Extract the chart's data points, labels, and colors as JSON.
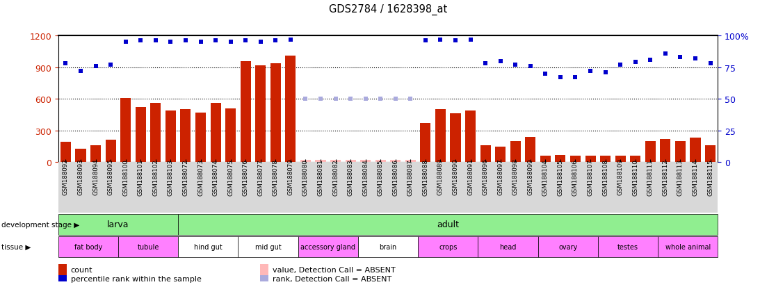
{
  "title": "GDS2784 / 1628398_at",
  "sample_ids": [
    "GSM188092",
    "GSM188093",
    "GSM188094",
    "GSM188095",
    "GSM188100",
    "GSM188101",
    "GSM188102",
    "GSM188103",
    "GSM188072",
    "GSM188073",
    "GSM188074",
    "GSM188075",
    "GSM188076",
    "GSM188077",
    "GSM188078",
    "GSM188079",
    "GSM188080",
    "GSM188081",
    "GSM188082",
    "GSM188083",
    "GSM188084",
    "GSM188085",
    "GSM188086",
    "GSM188087",
    "GSM188088",
    "GSM188089",
    "GSM188090",
    "GSM188091",
    "GSM188096",
    "GSM188097",
    "GSM188098",
    "GSM188099",
    "GSM188104",
    "GSM188105",
    "GSM188106",
    "GSM188107",
    "GSM188108",
    "GSM188109",
    "GSM188110",
    "GSM188111",
    "GSM188112",
    "GSM188113",
    "GSM188114",
    "GSM188115"
  ],
  "bar_values": [
    190,
    130,
    160,
    210,
    610,
    520,
    560,
    490,
    500,
    470,
    560,
    510,
    960,
    920,
    940,
    1010,
    20,
    20,
    20,
    20,
    20,
    20,
    20,
    20,
    370,
    500,
    460,
    490,
    160,
    150,
    200,
    240,
    60,
    70,
    60,
    60,
    60,
    60,
    60,
    200,
    220,
    200,
    230,
    160
  ],
  "absent_bar": [
    false,
    false,
    false,
    false,
    false,
    false,
    false,
    false,
    false,
    false,
    false,
    false,
    false,
    false,
    false,
    false,
    true,
    true,
    true,
    true,
    true,
    true,
    true,
    true,
    false,
    false,
    false,
    false,
    false,
    false,
    false,
    false,
    false,
    false,
    false,
    false,
    false,
    false,
    false,
    false,
    false,
    false,
    false,
    false
  ],
  "percentile_values": [
    78,
    72,
    76,
    77,
    95,
    96,
    96,
    95,
    96,
    95,
    96,
    95,
    96,
    95,
    96,
    97,
    50,
    50,
    50,
    50,
    50,
    50,
    50,
    50,
    96,
    97,
    96,
    97,
    78,
    80,
    77,
    76,
    70,
    67,
    67,
    72,
    71,
    77,
    79,
    81,
    86,
    83,
    82,
    78
  ],
  "absent_percentile": [
    false,
    false,
    false,
    false,
    false,
    false,
    false,
    false,
    false,
    false,
    false,
    false,
    false,
    false,
    false,
    false,
    true,
    true,
    true,
    true,
    true,
    true,
    true,
    true,
    false,
    false,
    false,
    false,
    false,
    false,
    false,
    false,
    false,
    false,
    false,
    false,
    false,
    false,
    false,
    false,
    false,
    false,
    false,
    false
  ],
  "dev_stage_groups": [
    {
      "label": "larva",
      "start": 0,
      "end": 8
    },
    {
      "label": "adult",
      "start": 8,
      "end": 44
    }
  ],
  "tissue_groups": [
    {
      "label": "fat body",
      "start": 0,
      "end": 4,
      "pink": true
    },
    {
      "label": "tubule",
      "start": 4,
      "end": 8,
      "pink": true
    },
    {
      "label": "hind gut",
      "start": 8,
      "end": 12,
      "pink": false
    },
    {
      "label": "mid gut",
      "start": 12,
      "end": 16,
      "pink": false
    },
    {
      "label": "accessory gland",
      "start": 16,
      "end": 20,
      "pink": true
    },
    {
      "label": "brain",
      "start": 20,
      "end": 24,
      "pink": false
    },
    {
      "label": "crops",
      "start": 24,
      "end": 28,
      "pink": true
    },
    {
      "label": "head",
      "start": 28,
      "end": 32,
      "pink": true
    },
    {
      "label": "ovary",
      "start": 32,
      "end": 36,
      "pink": true
    },
    {
      "label": "testes",
      "start": 36,
      "end": 40,
      "pink": true
    },
    {
      "label": "whole animal",
      "start": 40,
      "end": 44,
      "pink": true
    }
  ],
  "bar_color": "#cc2200",
  "absent_bar_color": "#ffb8b8",
  "dot_color": "#0000cc",
  "absent_dot_color": "#aaaadd",
  "dev_green": "#90ee90",
  "tissue_pink": "#ff80ff",
  "tissue_white": "#ffffff",
  "ylim_left": [
    0,
    1200
  ],
  "ylim_right": [
    0,
    100
  ],
  "yticks_left": [
    0,
    300,
    600,
    900,
    1200
  ],
  "yticks_right": [
    0,
    25,
    50,
    75,
    100
  ],
  "grid_lines": [
    300,
    600,
    900
  ]
}
